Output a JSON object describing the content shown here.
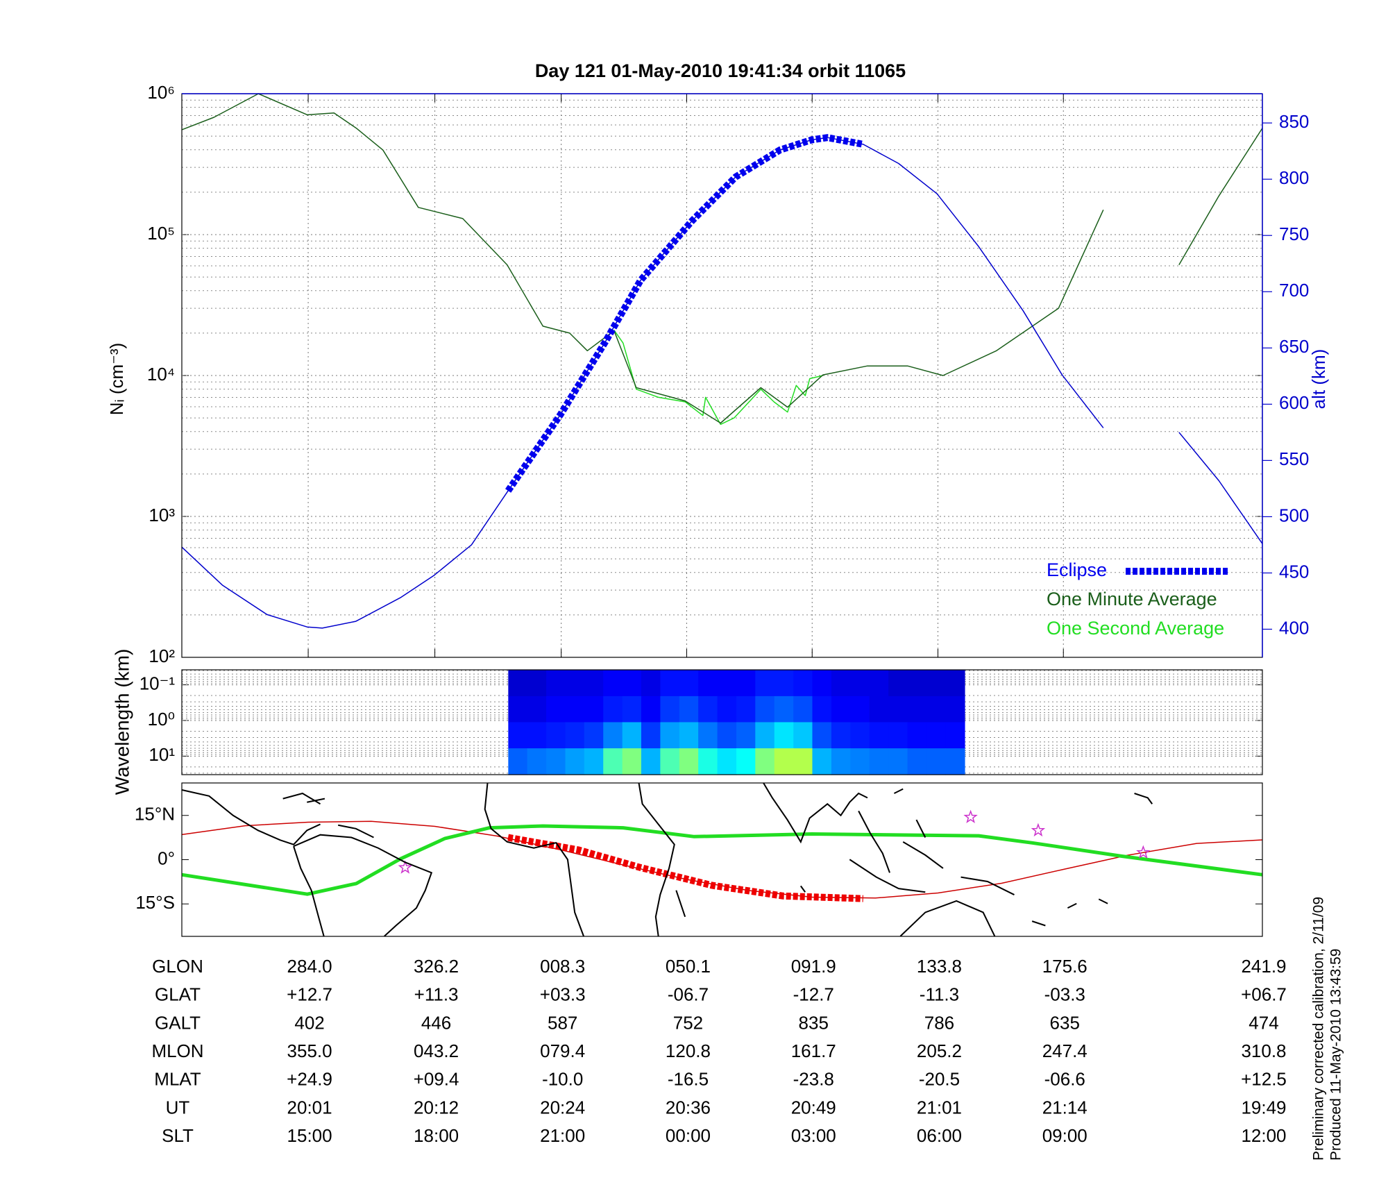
{
  "chart_data": [
    {
      "type": "line",
      "title": "Day 121  01-May-2010 19:41:34   orbit 11065",
      "ylabel": "Nᵢ (cm⁻³)",
      "y2label": "alt (km)",
      "xlim": [
        241.9,
        601.9
      ],
      "xticks": [
        284.0,
        326.2,
        368.3,
        410.1,
        451.9,
        493.8,
        535.6
      ],
      "ylim": [
        100,
        1000000
      ],
      "log_scale": true,
      "yticks": [
        {
          "value": 100,
          "label": "10²"
        },
        {
          "value": 1000,
          "label": "10³"
        },
        {
          "value": 10000,
          "label": "10⁴"
        },
        {
          "value": 100000,
          "label": "10⁵"
        },
        {
          "value": 1000000,
          "label": "10⁶"
        }
      ],
      "y2lim": [
        375,
        876
      ],
      "y2ticks": [
        400,
        450,
        500,
        550,
        600,
        650,
        700,
        750,
        800,
        850
      ],
      "grid": true,
      "legend": "lower right",
      "series": [
        {
          "name": "One Second Average",
          "color": "#22dd22",
          "x": [
            385.9,
            388.9,
            393.3,
            400.7,
            409.6,
            415.5,
            416.4,
            421.4,
            425.9,
            434.8,
            439.2,
            443.7,
            446.6,
            449.6,
            451.1,
            455.5
          ],
          "values": [
            21000,
            17000,
            8000,
            7000,
            6500,
            5200,
            7000,
            4500,
            5000,
            8000,
            6500,
            5500,
            8500,
            7200,
            9500,
            10000
          ]
        },
        {
          "name": "One Minute Average",
          "color": "#1a5e1a",
          "x": [
            241.9,
            252.6,
            267.4,
            283.7,
            292.6,
            300.0,
            308.9,
            320.7,
            335.5,
            350.3,
            362.2,
            371.1,
            377.0,
            385.9,
            393.3,
            409.6,
            421.4,
            434.8,
            443.7,
            455.5,
            470.3,
            483.7,
            495.5,
            513.3,
            534.0,
            548.9,
            561.5,
            574.1,
            587.4,
            601.9
          ],
          "values": [
            555000,
            680000,
            1000000,
            708000,
            730000,
            570000,
            398000,
            156000,
            130000,
            61000,
            22400,
            20000,
            15000,
            20800,
            8200,
            6600,
            4600,
            8200,
            5960,
            10100,
            11700,
            11700,
            10000,
            15000,
            30000,
            150000,
            null,
            61000,
            188000,
            570000
          ]
        },
        {
          "color": "#0000cc",
          "axis": "y2",
          "x": [
            241.9,
            255.5,
            270.3,
            283.6,
            288.7,
            299.9,
            314.7,
            326.0,
            338.4,
            350.6,
            368.1,
            382.9,
            394.7,
            411.9,
            426.4,
            441.2,
            451.7,
            457.0,
            468.9,
            480.7,
            493.5,
            507.4,
            522.2,
            535.2,
            548.9,
            561.5,
            574.1,
            587.4,
            601.9
          ],
          "values": [
            473,
            439,
            413,
            402,
            401,
            407,
            428,
            448,
            475,
            523,
            591,
            655,
            710,
            763,
            802,
            826,
            835,
            837,
            831,
            814,
            787,
            740,
            683,
            626,
            579,
            null,
            575,
            532,
            476
          ]
        },
        {
          "name": "Eclipse",
          "color": "#0000ee",
          "axis": "y2",
          "style": "dashed",
          "x": [
            350.6,
            368.1,
            382.9,
            394.7,
            411.9,
            426.4,
            441.2,
            451.7,
            457.0,
            468.9
          ],
          "values": [
            523,
            591,
            655,
            710,
            763,
            802,
            826,
            835,
            837,
            831
          ]
        }
      ]
    },
    {
      "type": "heatmap",
      "ylabel": "Wavelength (km)",
      "xlim": [
        241.9,
        601.9
      ],
      "ylim": [
        33,
        0.038
      ],
      "log_scale": true,
      "yticks": [
        {
          "value": 0.1,
          "label": "10⁻¹"
        },
        {
          "value": 1,
          "label": "10⁰"
        },
        {
          "value": 10,
          "label": "10¹"
        }
      ],
      "grid": true,
      "colormap": "jet",
      "x": [
        353.8,
        360.1,
        366.5,
        372.8,
        379.1,
        385.5,
        391.8,
        398.1,
        404.5,
        410.8,
        417.1,
        423.5,
        429.8,
        436.1,
        442.5,
        448.8,
        455.1,
        461.5,
        467.8,
        474.1,
        480.5,
        486.8,
        493.1,
        499.5
      ],
      "y": [
        0.09,
        0.48,
        2.6,
        14
      ],
      "values": [
        [
          0.08,
          0.08,
          0.1,
          0.1,
          0.1,
          0.12,
          0.12,
          0.1,
          0.14,
          0.14,
          0.12,
          0.12,
          0.12,
          0.15,
          0.15,
          0.14,
          0.12,
          0.1,
          0.1,
          0.1,
          0.08,
          0.08,
          0.08,
          0.08
        ],
        [
          0.1,
          0.1,
          0.12,
          0.12,
          0.12,
          0.15,
          0.16,
          0.12,
          0.18,
          0.2,
          0.16,
          0.14,
          0.15,
          0.2,
          0.22,
          0.2,
          0.14,
          0.12,
          0.12,
          0.1,
          0.1,
          0.1,
          0.1,
          0.1
        ],
        [
          0.14,
          0.14,
          0.15,
          0.16,
          0.18,
          0.25,
          0.3,
          0.18,
          0.28,
          0.3,
          0.24,
          0.2,
          0.22,
          0.3,
          0.35,
          0.32,
          0.2,
          0.16,
          0.15,
          0.14,
          0.14,
          0.13,
          0.13,
          0.13
        ],
        [
          0.22,
          0.24,
          0.25,
          0.28,
          0.3,
          0.45,
          0.5,
          0.3,
          0.45,
          0.5,
          0.4,
          0.35,
          0.38,
          0.5,
          0.55,
          0.55,
          0.3,
          0.26,
          0.25,
          0.24,
          0.24,
          0.22,
          0.22,
          0.22
        ]
      ]
    },
    {
      "type": "map",
      "xlim": [
        241.9,
        601.9
      ],
      "ylim": [
        -26,
        26
      ],
      "yticks": [
        {
          "value": 15,
          "label": "15°N"
        },
        {
          "value": 0,
          "label": "0°"
        },
        {
          "value": -15,
          "label": "15°S"
        }
      ],
      "series": [
        {
          "color": "#cc0000",
          "x": [
            241.9,
            263,
            284.0,
            305,
            326.2,
            347,
            368.3,
            389,
            410.1,
            431,
            451.9,
            473,
            493.8,
            515,
            535.6,
            557,
            580,
            601.9
          ],
          "values": [
            8.5,
            11.5,
            12.7,
            13.0,
            11.3,
            8.0,
            3.3,
            -1.8,
            -6.7,
            -10.5,
            -12.7,
            -13.0,
            -11.3,
            -8.0,
            -3.3,
            1.5,
            5.5,
            6.7
          ]
        },
        {
          "color": "#22dd22",
          "style": "thick",
          "x": [
            241.9,
            283.7,
            300.0,
            314.8,
            329.6,
            344.4,
            362.2,
            388.9,
            412.6,
            451.8,
            507.4,
            525.2,
            554.9,
            601.9
          ],
          "values": [
            -5.1,
            -11.7,
            -8.1,
            0.3,
            7.2,
            10.8,
            11.4,
            10.8,
            7.8,
            8.7,
            8.1,
            5.7,
            1.2,
            -5.1
          ]
        },
        {
          "color": "#ee0000",
          "style": "dashed",
          "x": [
            350.6,
            374.1,
            394.8,
            418.5,
            442.2,
            468.9
          ],
          "values": [
            7.5,
            3.3,
            -2.7,
            -8.7,
            -12.3,
            -13.2
          ]
        },
        {
          "color": "#cc33cc",
          "marker": "star",
          "x": [
            316.3,
            504.7,
            527.2,
            562.2
          ],
          "values": [
            -2.7,
            14.4,
            9.9,
            2.4
          ]
        }
      ]
    }
  ],
  "table": {
    "rows": [
      {
        "name": "GLON",
        "values": [
          "284.0",
          "326.2",
          "008.3",
          "050.1",
          "091.9",
          "133.8",
          "175.6",
          "241.9"
        ]
      },
      {
        "name": "GLAT",
        "values": [
          "+12.7",
          "+11.3",
          "+03.3",
          "-06.7",
          "-12.7",
          "-11.3",
          "-03.3",
          "+06.7"
        ]
      },
      {
        "name": "GALT",
        "values": [
          "402",
          "446",
          "587",
          "752",
          "835",
          "786",
          "635",
          "474"
        ]
      },
      {
        "name": "MLON",
        "values": [
          "355.0",
          "043.2",
          "079.4",
          "120.8",
          "161.7",
          "205.2",
          "247.4",
          "310.8"
        ]
      },
      {
        "name": "MLAT",
        "values": [
          "+24.9",
          "+09.4",
          "-10.0",
          "-16.5",
          "-23.8",
          "-20.5",
          "-06.6",
          "+12.5"
        ]
      },
      {
        "name": "UT",
        "values": [
          "20:01",
          "20:12",
          "20:24",
          "20:36",
          "20:49",
          "21:01",
          "21:14",
          "19:49"
        ]
      },
      {
        "name": "SLT",
        "values": [
          "15:00",
          "18:00",
          "21:00",
          "00:00",
          "03:00",
          "06:00",
          "09:00",
          "12:00"
        ]
      }
    ]
  },
  "footer": [
    "Preliminary corrected calibration, 2/11/09",
    "Produced 11-May-2010 13:43:59"
  ]
}
